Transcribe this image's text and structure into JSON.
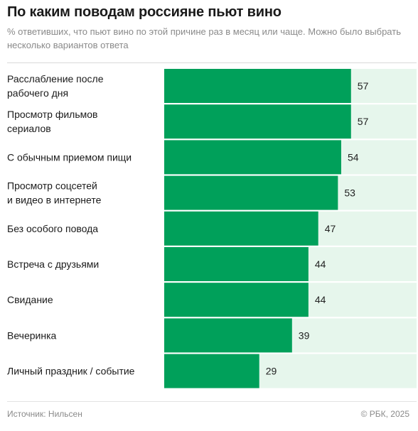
{
  "title": "По каким поводам россияне пьют вино",
  "subtitle": "% ответивших, что пьют вино по этой причине раз в месяц или чаще. Можно было выбрать несколько вариантов ответа",
  "colors": {
    "bar": "#00a05a",
    "track": "#e6f6ec",
    "value_text": "#222222",
    "label_text": "#1a1a1a"
  },
  "chart_data": {
    "type": "bar",
    "orientation": "horizontal",
    "categories": [
      "Расслабление после рабочего дня",
      "Просмотр фильмов сериалов",
      "С обычным приемом пищи",
      "Просмотр соцсетей и видео в интернете",
      "Без особого повода",
      "Встреча с друзьями",
      "Свидание",
      "Вечеринка",
      "Личный праздник / событие"
    ],
    "category_lines": [
      [
        "Расслабление после",
        "рабочего дня"
      ],
      [
        "Просмотр фильмов",
        "сериалов"
      ],
      [
        "С обычным приемом пищи"
      ],
      [
        "Просмотр соцсетей",
        "и видео в интернете"
      ],
      [
        "Без особого повода"
      ],
      [
        "Встреча с друзьями"
      ],
      [
        "Свидание"
      ],
      [
        "Вечеринка"
      ],
      [
        "Личный праздник / событие"
      ]
    ],
    "values": [
      57,
      57,
      54,
      53,
      47,
      44,
      44,
      39,
      29
    ],
    "xlim": [
      0,
      100
    ],
    "grid": false
  },
  "footer": {
    "source": "Источник: Нильсен",
    "copyright": "© РБК, 2025"
  }
}
